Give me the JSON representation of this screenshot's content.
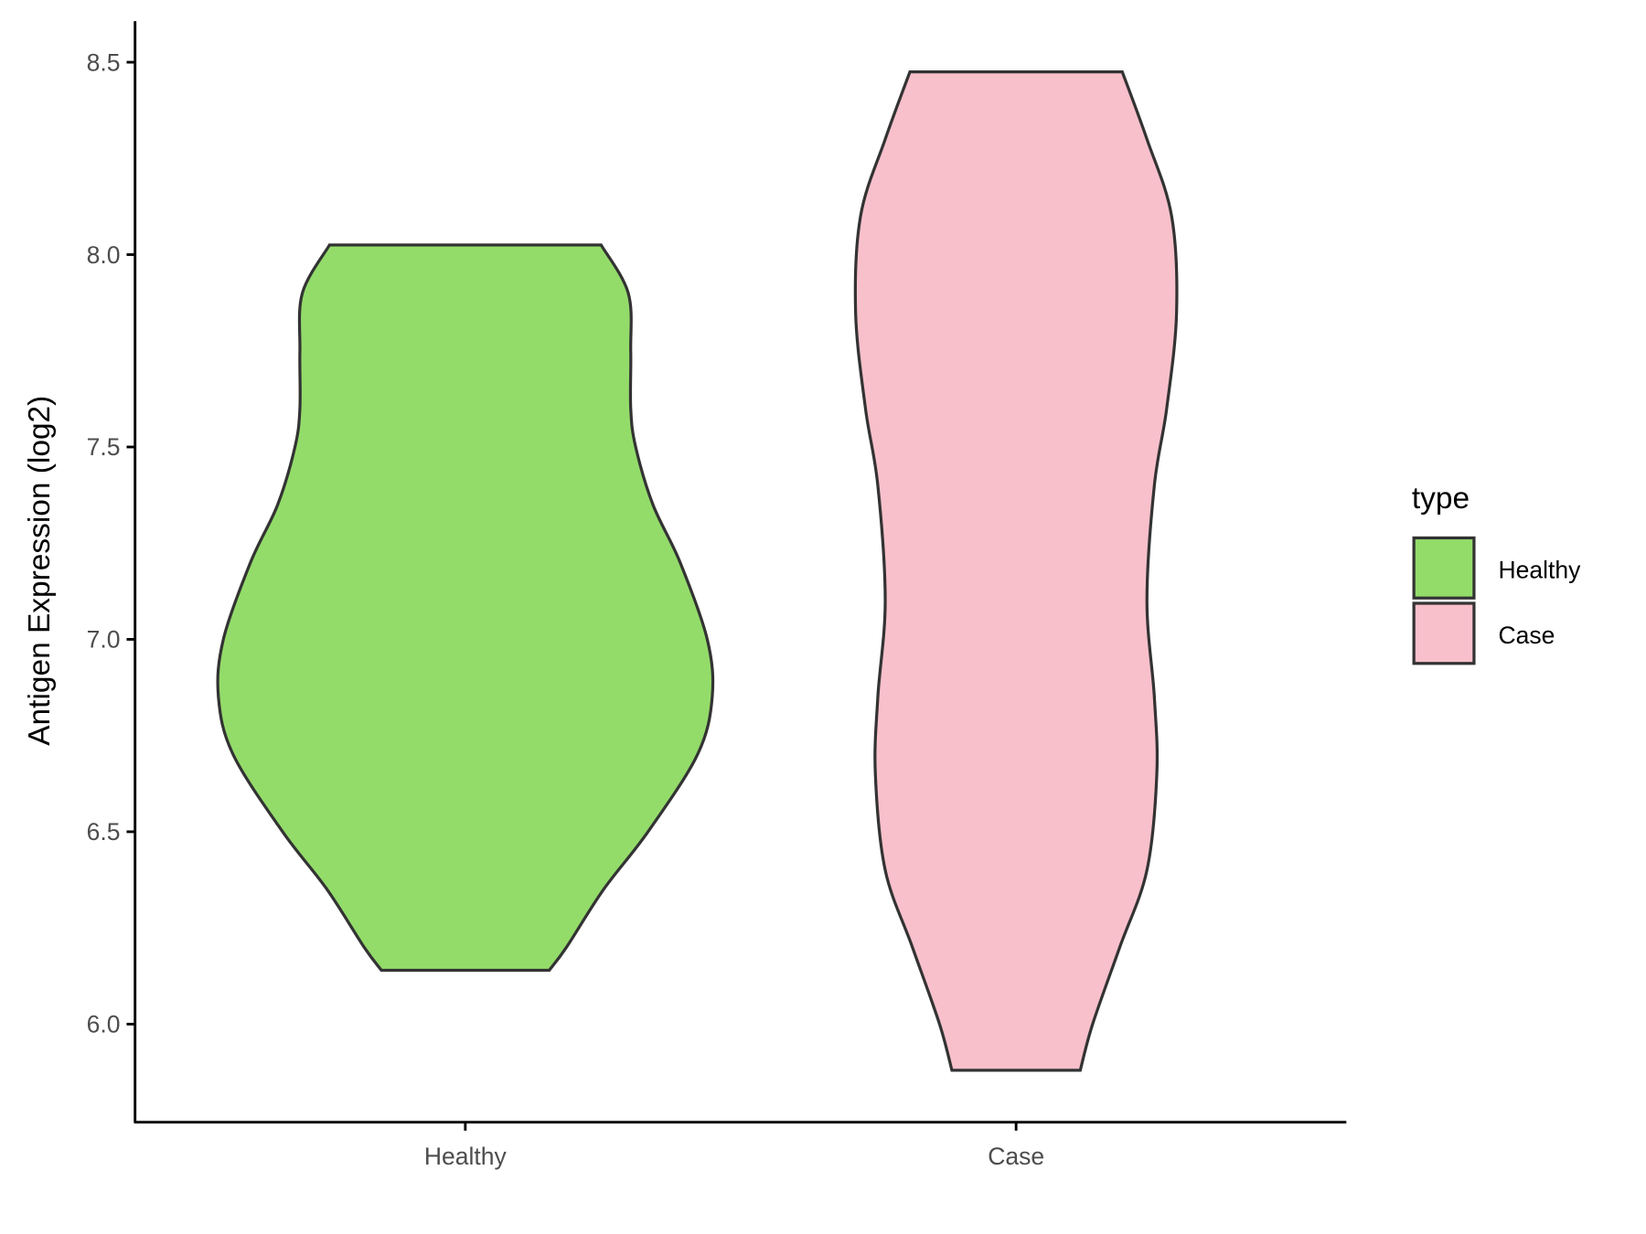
{
  "chart_data": {
    "type": "violin",
    "title": "",
    "xlabel": "",
    "ylabel": "Antigen Expression (log2)",
    "ylim": [
      5.75,
      8.6
    ],
    "yticks": [
      "6.0",
      "6.5",
      "7.0",
      "7.5",
      "8.0",
      "8.5"
    ],
    "categories": [
      "Healthy",
      "Case"
    ],
    "grid": false,
    "legend": {
      "title": "type",
      "placement": "right",
      "entries": [
        "Healthy",
        "Case"
      ]
    },
    "series": [
      {
        "name": "Healthy",
        "color": "#93DC6A",
        "min": 6.14,
        "max": 8.025,
        "density_profile": [
          [
            8.025,
            0.55
          ],
          [
            7.9,
            0.66
          ],
          [
            7.75,
            0.67
          ],
          [
            7.6,
            0.67
          ],
          [
            7.5,
            0.69
          ],
          [
            7.35,
            0.76
          ],
          [
            7.2,
            0.87
          ],
          [
            7.0,
            0.98
          ],
          [
            6.85,
            1.0
          ],
          [
            6.7,
            0.94
          ],
          [
            6.5,
            0.74
          ],
          [
            6.35,
            0.56
          ],
          [
            6.2,
            0.41
          ],
          [
            6.14,
            0.34
          ]
        ]
      },
      {
        "name": "Case",
        "color": "#F8C0CB",
        "min": 5.88,
        "max": 8.475,
        "density_profile": [
          [
            8.475,
            0.43
          ],
          [
            8.3,
            0.53
          ],
          [
            8.1,
            0.63
          ],
          [
            7.85,
            0.65
          ],
          [
            7.6,
            0.61
          ],
          [
            7.4,
            0.56
          ],
          [
            7.1,
            0.53
          ],
          [
            6.85,
            0.56
          ],
          [
            6.65,
            0.57
          ],
          [
            6.4,
            0.53
          ],
          [
            6.2,
            0.42
          ],
          [
            6.0,
            0.31
          ],
          [
            5.88,
            0.26
          ]
        ]
      }
    ]
  }
}
